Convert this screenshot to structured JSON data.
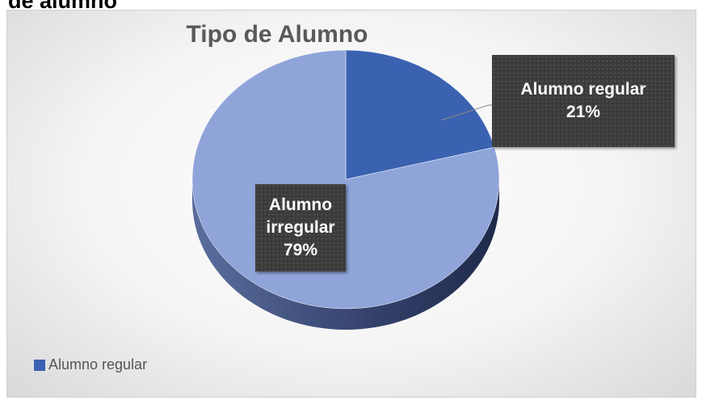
{
  "heading": "de alumno",
  "chart_data": {
    "type": "pie",
    "title": "Tipo de Alumno",
    "categories": [
      "Alumno regular",
      "Alumno irregular"
    ],
    "values": [
      21,
      79
    ],
    "value_labels": [
      "21%",
      "79%"
    ],
    "colors": [
      "#3a62b0",
      "#8fa4d8"
    ],
    "legend": "bottom-left"
  }
}
